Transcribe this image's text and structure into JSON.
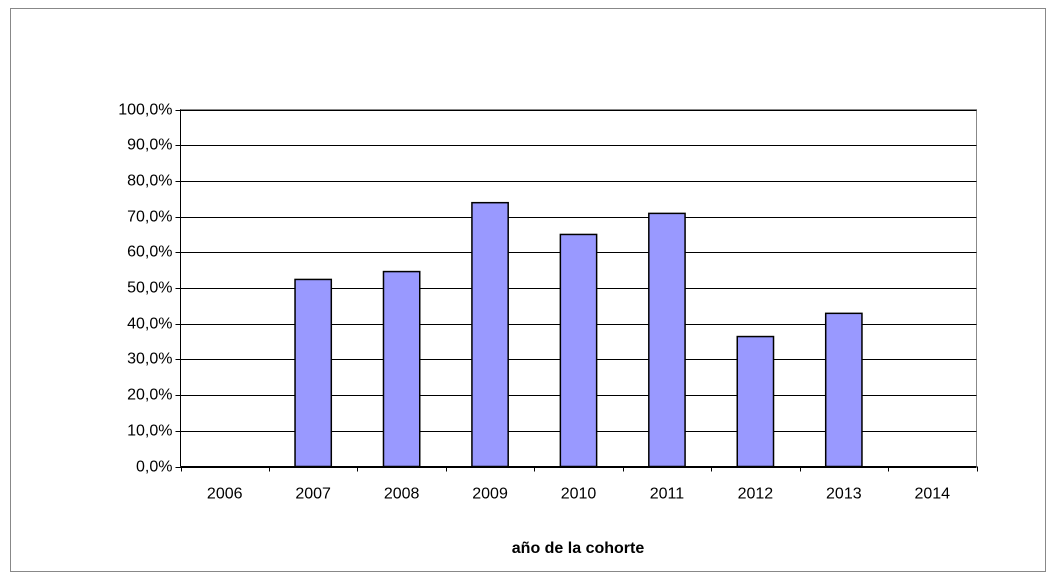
{
  "chart_data": {
    "type": "bar",
    "x_label": "año de la cohorte",
    "categories": [
      "2006",
      "2007",
      "2008",
      "2009",
      "2010",
      "2011",
      "2012",
      "2013",
      "2014"
    ],
    "values": [
      null,
      52.4,
      54.6,
      73.9,
      65.0,
      70.9,
      36.4,
      42.9,
      null
    ],
    "color": "#9999ff",
    "ylim": [
      0,
      100
    ],
    "yticks": [
      {
        "value": 0,
        "label": "0,0%"
      },
      {
        "value": 10,
        "label": "10,0%"
      },
      {
        "value": 20,
        "label": "20,0%"
      },
      {
        "value": 30,
        "label": "30,0%"
      },
      {
        "value": 40,
        "label": "40,0%"
      },
      {
        "value": 50,
        "label": "50,0%"
      },
      {
        "value": 60,
        "label": "60,0%"
      },
      {
        "value": 70,
        "label": "70,0%"
      },
      {
        "value": 80,
        "label": "80,0%"
      },
      {
        "value": 90,
        "label": "90,0%"
      },
      {
        "value": 100,
        "label": "100,0%"
      }
    ],
    "grid": true
  }
}
